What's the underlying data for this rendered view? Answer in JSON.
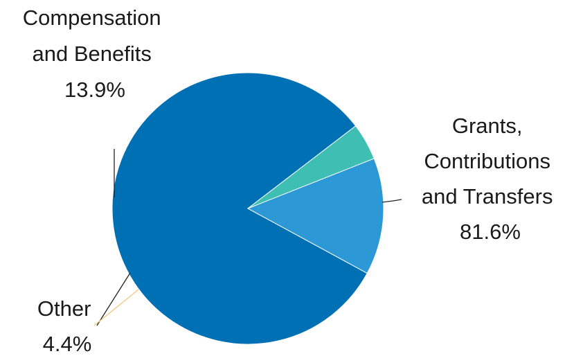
{
  "chart_data": {
    "type": "pie",
    "title": "",
    "slices": [
      {
        "name": "Grants, Contributions and Transfers",
        "label_lines": [
          "Grants,",
          "Contributions",
          "and Transfers"
        ],
        "value_label": "81.6%",
        "value": 81.6,
        "color": "#0070b4"
      },
      {
        "name": "Other",
        "label_lines": [
          "Other"
        ],
        "value_label": "4.4%",
        "value": 4.4,
        "color": "#3fbfb3"
      },
      {
        "name": "Compensation and Benefits",
        "label_lines": [
          "Compensation",
          "and Benefits"
        ],
        "value_label": "13.9%",
        "value": 13.9,
        "color": "#2d98d6"
      }
    ],
    "start_angle_deg": 118.5,
    "direction": "clockwise",
    "legend": "none"
  }
}
